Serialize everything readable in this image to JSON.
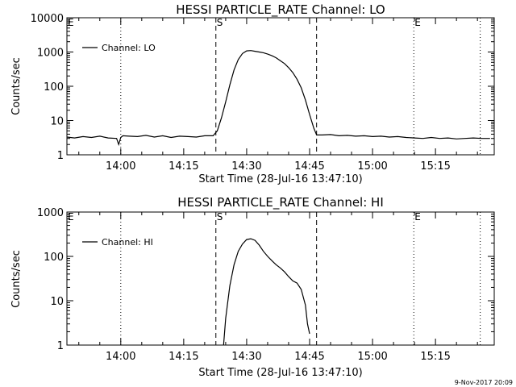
{
  "footer": "9-Nov-2017 20:09",
  "chart_data": [
    {
      "type": "line",
      "title": "HESSI PARTICLE_RATE Channel: LO",
      "xlabel": "Start Time (28-Jul-16 13:47:10)",
      "ylabel": "Counts/sec",
      "yscale": "log",
      "ylim": [
        1,
        10000
      ],
      "xlim": [
        "13:47:10",
        "15:29:00"
      ],
      "x_ticks": [
        "14:00",
        "14:15",
        "14:30",
        "14:45",
        "15:00",
        "15:15"
      ],
      "y_ticks": [
        "1",
        "10",
        "100",
        "1000",
        "10000"
      ],
      "legend": {
        "label": "Channel: LO",
        "position": "top-left"
      },
      "markers": [
        {
          "time": "13:47:10",
          "style": "dotted",
          "label": "E"
        },
        {
          "time": "14:00",
          "style": "dotted",
          "label": ""
        },
        {
          "time": "14:22:40",
          "style": "dashed",
          "label": "S"
        },
        {
          "time": "14:46:40",
          "style": "dashed",
          "label": ""
        },
        {
          "time": "15:09:50",
          "style": "dotted",
          "label": "E"
        },
        {
          "time": "15:25:40",
          "style": "dotted",
          "label": ""
        }
      ],
      "series": [
        {
          "x": [
            "13:47:10",
            "13:49:00",
            "13:51:00",
            "13:53:00",
            "13:55:00",
            "13:57:00",
            "13:59:00",
            "13:59:30",
            "14:00:00",
            "14:00:30",
            "14:02:00",
            "14:04:00",
            "14:06:00",
            "14:08:00",
            "14:10:00",
            "14:12:00",
            "14:14:00",
            "14:16:00",
            "14:18:00",
            "14:20:00",
            "14:22:00",
            "14:23:00",
            "14:24:00",
            "14:25:00",
            "14:26:00",
            "14:27:00",
            "14:28:00",
            "14:29:00",
            "14:30:00",
            "14:31:00",
            "14:32:00",
            "14:33:00",
            "14:34:00",
            "14:35:00",
            "14:36:00",
            "14:37:00",
            "14:38:00",
            "14:39:00",
            "14:40:00",
            "14:41:00",
            "14:42:00",
            "14:43:00",
            "14:44:00",
            "14:45:00",
            "14:46:00",
            "14:46:40",
            "14:48:00",
            "14:50:00",
            "14:52:00",
            "14:54:00",
            "14:56:00",
            "14:58:00",
            "15:00:00",
            "15:02:00",
            "15:04:00",
            "15:06:00",
            "15:08:00",
            "15:10:00",
            "15:12:00",
            "15:14:00",
            "15:16:00",
            "15:18:00",
            "15:20:00",
            "15:22:00",
            "15:24:00",
            "15:26:00",
            "15:28:00"
          ],
          "y": [
            3.3,
            3.1,
            3.4,
            3.2,
            3.5,
            3.1,
            3.0,
            2.0,
            3.2,
            3.6,
            3.5,
            3.4,
            3.7,
            3.3,
            3.6,
            3.2,
            3.5,
            3.4,
            3.3,
            3.6,
            3.6,
            5,
            12,
            35,
            110,
            300,
            600,
            900,
            1080,
            1100,
            1050,
            1000,
            950,
            870,
            780,
            680,
            560,
            460,
            350,
            250,
            160,
            90,
            40,
            15,
            6,
            3.8,
            3.8,
            3.9,
            3.6,
            3.7,
            3.5,
            3.6,
            3.4,
            3.5,
            3.3,
            3.4,
            3.2,
            3.1,
            3.0,
            3.2,
            3.0,
            3.1,
            2.9,
            3.0,
            3.1,
            3.0,
            3.0
          ]
        }
      ]
    },
    {
      "type": "line",
      "title": "HESSI PARTICLE_RATE Channel: HI",
      "xlabel": "Start Time (28-Jul-16 13:47:10)",
      "ylabel": "Counts/sec",
      "yscale": "log",
      "ylim": [
        1,
        1000
      ],
      "xlim": [
        "13:47:10",
        "15:29:00"
      ],
      "x_ticks": [
        "14:00",
        "14:15",
        "14:30",
        "14:45",
        "15:00",
        "15:15"
      ],
      "y_ticks": [
        "1",
        "10",
        "100",
        "1000"
      ],
      "legend": {
        "label": "Channel: HI",
        "position": "top-left"
      },
      "markers": [
        {
          "time": "13:47:10",
          "style": "dotted",
          "label": "E"
        },
        {
          "time": "14:00",
          "style": "dotted",
          "label": ""
        },
        {
          "time": "14:22:40",
          "style": "dashed",
          "label": "S"
        },
        {
          "time": "14:46:40",
          "style": "dashed",
          "label": ""
        },
        {
          "time": "15:09:50",
          "style": "dotted",
          "label": "E"
        },
        {
          "time": "15:25:40",
          "style": "dotted",
          "label": ""
        }
      ],
      "series": [
        {
          "x": [
            "14:24:30",
            "14:25:00",
            "14:26:00",
            "14:27:00",
            "14:28:00",
            "14:29:00",
            "14:30:00",
            "14:31:00",
            "14:32:00",
            "14:33:00",
            "14:34:00",
            "14:35:00",
            "14:36:00",
            "14:37:00",
            "14:38:00",
            "14:39:00",
            "14:40:00",
            "14:41:00",
            "14:42:00",
            "14:43:00",
            "14:44:00",
            "14:44:30",
            "14:45:00"
          ],
          "y": [
            1.0,
            4,
            22,
            65,
            130,
            190,
            240,
            250,
            230,
            180,
            130,
            100,
            80,
            65,
            55,
            45,
            35,
            28,
            25,
            18,
            8,
            3,
            1.8
          ]
        }
      ]
    }
  ]
}
